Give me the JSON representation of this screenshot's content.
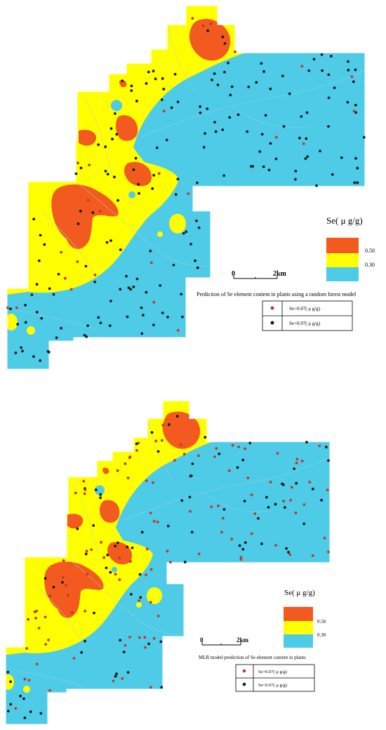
{
  "colors": {
    "high": "#f25a1f",
    "mid": "#ffff00",
    "low": "#4ecbe6",
    "dot_dark": "#1a1a1a",
    "dot_red": "#c0392b",
    "road": "#9fd6e6"
  },
  "maps": [
    {
      "id": "random-forest",
      "legend_title": "Se( μ g/g)",
      "class_breaks": [
        "0.50",
        "0.30"
      ],
      "scalebar": {
        "start": "0",
        "end": "2km"
      },
      "caption": "Prediction of Se element content in plants using a random forest model",
      "point_legend": [
        {
          "label": "Se>0.07( μ g/g)",
          "color": "#c0392b"
        },
        {
          "label": "Se<0.07( μ g/g)",
          "color": "#1a1a1a"
        }
      ]
    },
    {
      "id": "mlr",
      "legend_title": "Se( μ g/g)",
      "class_breaks": [
        "0.50",
        "0.30"
      ],
      "scalebar": {
        "start": "0",
        "end": "2km"
      },
      "caption": "MLR model prediction of Se element content in plants",
      "point_legend": [
        {
          "label": "Se>0.07( μ g/g)",
          "color": "#c0392b"
        },
        {
          "label": "Se<0.07( μ g/g)",
          "color": "#1a1a1a"
        }
      ]
    }
  ]
}
